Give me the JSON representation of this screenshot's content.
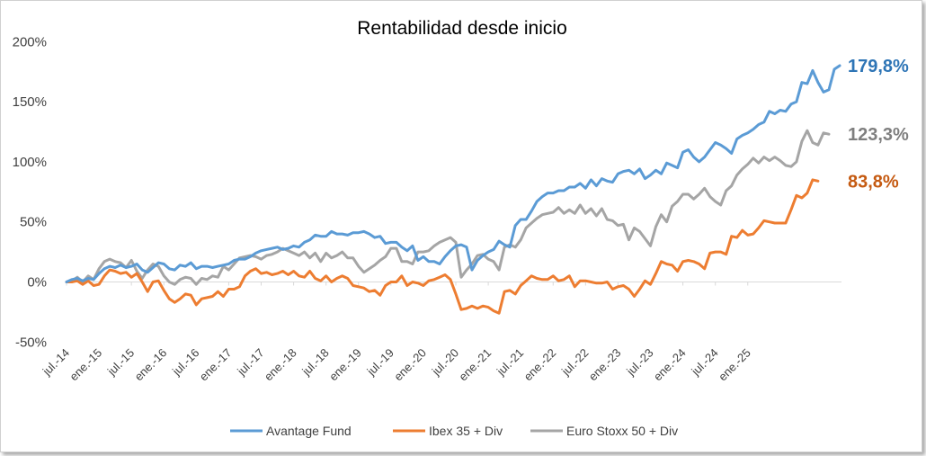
{
  "chart_data": {
    "type": "line",
    "title": "Rentabilidad desde inicio",
    "xlabel": "",
    "ylabel": "",
    "ylim": [
      -50,
      200
    ],
    "y_ticks": [
      "-50%",
      "0%",
      "50%",
      "100%",
      "150%",
      "200%"
    ],
    "y_tick_values": [
      -50,
      0,
      50,
      100,
      150,
      200
    ],
    "x_ticks": [
      "jul.-14",
      "ene.-15",
      "jul.-15",
      "ene.-16",
      "jul.-16",
      "ene.-17",
      "jul.-17",
      "ene.-18",
      "jul.-18",
      "ene.-19",
      "jul.-19",
      "ene.-20",
      "jul.-20",
      "ene.-21",
      "jul.-21",
      "ene.-22",
      "jul.-22",
      "ene.-23",
      "jul.-23",
      "ene.-24",
      "jul.-24",
      "ene.-25"
    ],
    "grid": false,
    "legend_position": "bottom",
    "series": [
      {
        "name": "Avantage Fund",
        "color": "#5b9bd5",
        "end_label": "179,8%",
        "values": [
          0,
          2,
          3,
          1,
          3,
          2,
          7,
          11,
          13,
          12,
          14,
          12,
          13,
          15,
          10,
          8,
          12,
          16,
          15,
          11,
          10,
          14,
          13,
          16,
          11,
          13,
          13,
          12,
          13,
          14,
          15,
          18,
          19,
          19,
          21,
          24,
          26,
          27,
          28,
          29,
          27,
          28,
          30,
          29,
          33,
          35,
          39,
          38,
          38,
          42,
          40,
          40,
          39,
          41,
          41,
          42,
          40,
          37,
          38,
          32,
          33,
          33,
          29,
          26,
          30,
          18,
          21,
          17,
          17,
          15,
          21,
          26,
          30,
          31,
          29,
          10,
          18,
          22,
          25,
          27,
          34,
          31,
          29,
          47,
          52,
          52,
          59,
          67,
          71,
          74,
          74,
          76,
          76,
          79,
          79,
          82,
          78,
          85,
          80,
          86,
          84,
          83,
          90,
          92,
          93,
          90,
          94,
          86,
          89,
          93,
          90,
          99,
          97,
          95,
          108,
          110,
          104,
          100,
          104,
          110,
          116,
          114,
          111,
          107,
          119,
          122,
          124,
          127,
          131,
          133,
          142,
          140,
          143,
          142,
          148,
          150,
          166,
          165,
          176,
          166,
          158,
          160,
          177,
          180
        ]
      },
      {
        "name": "Ibex 35 + Div",
        "color": "#ed7d31",
        "end_label": "83,8%",
        "values": [
          0,
          0,
          1,
          -2,
          1,
          -3,
          -2,
          5,
          10,
          9,
          7,
          8,
          4,
          7,
          0,
          -8,
          0,
          1,
          -7,
          -14,
          -17,
          -14,
          -10,
          -11,
          -19,
          -14,
          -13,
          -12,
          -8,
          -12,
          -6,
          -6,
          -4,
          5,
          9,
          11,
          7,
          8,
          6,
          7,
          9,
          6,
          9,
          5,
          4,
          9,
          3,
          1,
          5,
          0,
          3,
          5,
          3,
          -3,
          -4,
          -5,
          -8,
          -7,
          -11,
          -3,
          0,
          0,
          5,
          -3,
          0,
          -1,
          -3,
          1,
          2,
          4,
          6,
          2,
          -10,
          -23,
          -22,
          -20,
          -22,
          -20,
          -21,
          -24,
          -26,
          -8,
          -7,
          -10,
          -3,
          1,
          5,
          3,
          2,
          2,
          5,
          1,
          2,
          5,
          -4,
          1,
          1,
          0,
          -1,
          -1,
          0,
          -6,
          -4,
          -3,
          -6,
          -12,
          -6,
          1,
          -2,
          7,
          17,
          15,
          14,
          9,
          17,
          18,
          17,
          15,
          11,
          24,
          25,
          25,
          23,
          38,
          37,
          43,
          39,
          40,
          45,
          51,
          50,
          49,
          49,
          49,
          60,
          72,
          70,
          74,
          85,
          84
        ]
      },
      {
        "name": "Euro Stoxx 50 + Div",
        "color": "#a5a5a5",
        "end_label": "123,3%",
        "values": [
          0,
          1,
          4,
          0,
          5,
          2,
          11,
          17,
          19,
          17,
          16,
          12,
          18,
          9,
          3,
          10,
          15,
          13,
          5,
          0,
          -2,
          2,
          4,
          3,
          -2,
          3,
          2,
          5,
          4,
          13,
          10,
          15,
          20,
          21,
          22,
          21,
          19,
          22,
          23,
          25,
          28,
          26,
          24,
          22,
          25,
          20,
          24,
          17,
          24,
          20,
          22,
          25,
          20,
          20,
          13,
          8,
          11,
          14,
          18,
          21,
          28,
          28,
          17,
          17,
          15,
          25,
          25,
          26,
          30,
          33,
          35,
          37,
          33,
          4,
          10,
          15,
          22,
          23,
          19,
          17,
          10,
          29,
          31,
          29,
          35,
          45,
          49,
          53,
          56,
          57,
          58,
          62,
          57,
          60,
          57,
          64,
          57,
          61,
          55,
          61,
          52,
          51,
          47,
          48,
          35,
          45,
          42,
          36,
          30,
          46,
          56,
          50,
          63,
          67,
          73,
          73,
          69,
          73,
          78,
          71,
          67,
          64,
          76,
          80,
          89,
          94,
          98,
          103,
          99,
          104,
          101,
          104,
          101,
          97,
          96,
          100,
          117,
          126,
          116,
          114,
          124,
          123
        ]
      }
    ],
    "legend": [
      {
        "name": "Avantage Fund",
        "color": "#5b9bd5"
      },
      {
        "name": "Ibex 35 + Div",
        "color": "#ed7d31"
      },
      {
        "name": "Euro Stoxx 50 + Div",
        "color": "#a5a5a5"
      }
    ]
  }
}
